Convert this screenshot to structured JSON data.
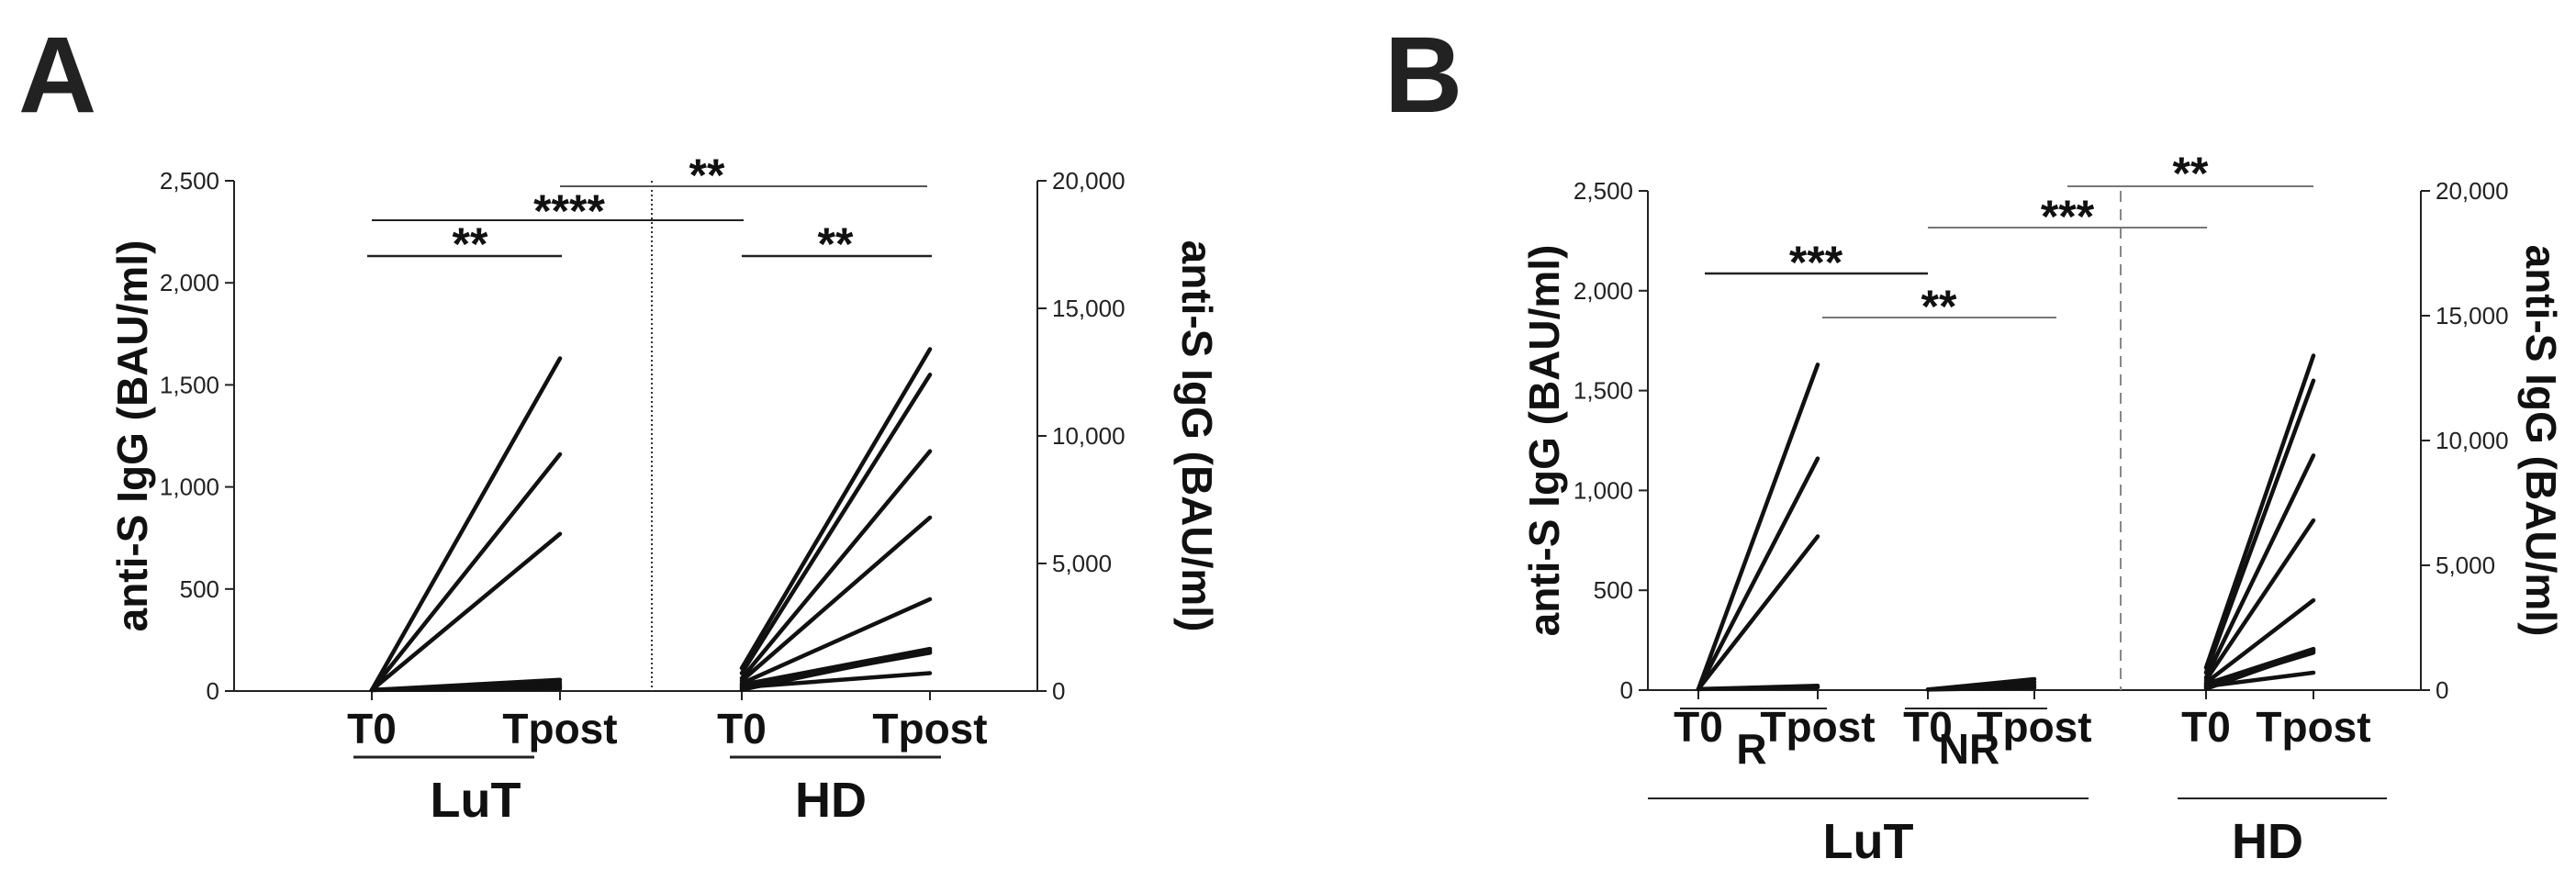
{
  "chart_data": [
    {
      "panel": "A",
      "type": "line",
      "left_axis": {
        "title": "anti-S IgG (BAU/ml)",
        "ylim": [
          0,
          2500
        ],
        "ticks": [
          "0",
          "500",
          "1,000",
          "1,500",
          "2,000",
          "2,500"
        ],
        "tick_values": [
          0,
          500,
          1000,
          1500,
          2000,
          2500
        ]
      },
      "right_axis": {
        "title": "anti-S IgG (BAU/ml)",
        "ylim": [
          0,
          20000
        ],
        "ticks": [
          "0",
          "5,000",
          "10,000",
          "15,000",
          "20,000"
        ],
        "tick_values": [
          0,
          5000,
          10000,
          15000,
          20000
        ]
      },
      "groups": [
        {
          "name": "LuT",
          "axis": "left",
          "categories": [
            "T0",
            "Tpost"
          ],
          "series": [
            [
              5,
              1630
            ],
            [
              5,
              1160
            ],
            [
              5,
              770
            ],
            [
              5,
              55
            ],
            [
              5,
              42
            ],
            [
              5,
              30
            ],
            [
              5,
              20
            ],
            [
              5,
              12
            ]
          ]
        },
        {
          "name": "HD",
          "axis": "right",
          "categories": [
            "T0",
            "Tpost"
          ],
          "series": [
            [
              900,
              13400
            ],
            [
              700,
              12400
            ],
            [
              500,
              9400
            ],
            [
              400,
              6800
            ],
            [
              300,
              3600
            ],
            [
              250,
              1650
            ],
            [
              200,
              1500
            ],
            [
              150,
              700
            ],
            [
              100,
              1550
            ],
            [
              50,
              1600
            ]
          ]
        }
      ],
      "significance": [
        {
          "label": "**",
          "from": "LuT T0",
          "to": "LuT Tpost"
        },
        {
          "label": "****",
          "from": "LuT T0",
          "to": "HD T0"
        },
        {
          "label": "**",
          "from": "LuT Tpost",
          "to": "HD Tpost"
        },
        {
          "label": "**",
          "from": "HD T0",
          "to": "HD Tpost"
        }
      ]
    },
    {
      "panel": "B",
      "type": "line",
      "left_axis": {
        "title": "anti-S IgG (BAU/ml)",
        "ylim": [
          0,
          2500
        ],
        "ticks": [
          "0",
          "500",
          "1,000",
          "1,500",
          "2,000",
          "2,500"
        ],
        "tick_values": [
          0,
          500,
          1000,
          1500,
          2000,
          2500
        ]
      },
      "right_axis": {
        "title": "anti-S IgG (BAU/ml)",
        "ylim": [
          0,
          20000
        ],
        "ticks": [
          "0",
          "5,000",
          "10,000",
          "15,000",
          "20,000"
        ],
        "tick_values": [
          0,
          5000,
          10000,
          15000,
          20000
        ]
      },
      "groups": [
        {
          "name": "R",
          "parent": "LuT",
          "axis": "left",
          "categories": [
            "T0",
            "Tpost"
          ],
          "series": [
            [
              5,
              1630
            ],
            [
              5,
              1160
            ],
            [
              5,
              770
            ],
            [
              5,
              22
            ],
            [
              5,
              14
            ]
          ]
        },
        {
          "name": "NR",
          "parent": "LuT",
          "axis": "left",
          "categories": [
            "T0",
            "Tpost"
          ],
          "series": [
            [
              3,
              55
            ],
            [
              3,
              40
            ],
            [
              3,
              25
            ],
            [
              3,
              12
            ]
          ]
        },
        {
          "name": "HD",
          "axis": "right",
          "categories": [
            "T0",
            "Tpost"
          ],
          "series": [
            [
              900,
              13400
            ],
            [
              700,
              12400
            ],
            [
              500,
              9400
            ],
            [
              400,
              6800
            ],
            [
              300,
              3600
            ],
            [
              250,
              1650
            ],
            [
              200,
              1500
            ],
            [
              150,
              700
            ],
            [
              100,
              1550
            ],
            [
              50,
              1600
            ]
          ]
        }
      ],
      "significance": [
        {
          "label": "***",
          "from": "R T0",
          "to": "NR T0"
        },
        {
          "label": "**",
          "from": "R Tpost",
          "to": "NR Tpost"
        },
        {
          "label": "***",
          "from": "NR T0",
          "to": "HD T0"
        },
        {
          "label": "**",
          "from": "NR Tpost",
          "to": "HD Tpost"
        }
      ],
      "supergroup": "LuT"
    }
  ]
}
